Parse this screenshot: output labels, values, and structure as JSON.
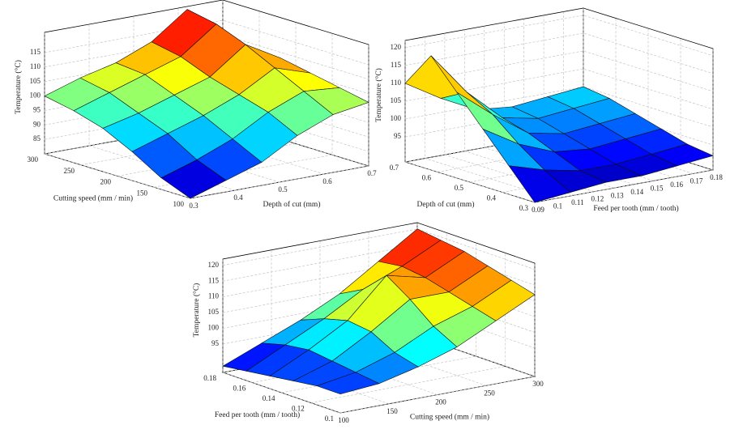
{
  "chart_data": [
    {
      "type": "surface",
      "xlabel": "Depth of cut (mm)",
      "ylabel": "Cutting speed (mm / min)",
      "zlabel": "Temperature (°C)",
      "x": [
        0.3,
        0.38,
        0.46,
        0.54,
        0.62,
        0.7
      ],
      "y": [
        100,
        140,
        180,
        220,
        260,
        300
      ],
      "z": [
        [
          80,
          84,
          88,
          95,
          100,
          102
        ],
        [
          84,
          88,
          93,
          100,
          105,
          104
        ],
        [
          90,
          94,
          98,
          103,
          110,
          106
        ],
        [
          95,
          98,
          102,
          106,
          115,
          108
        ],
        [
          98,
          102,
          106,
          110,
          119,
          107
        ],
        [
          100,
          104,
          107,
          112,
          121,
          106
        ]
      ],
      "xlim": [
        0.3,
        0.7
      ],
      "ylim": [
        100,
        300
      ],
      "zlim": [
        80,
        122
      ],
      "xticks": [
        0.3,
        0.4,
        0.5,
        0.6,
        0.7
      ],
      "yticks": [
        100,
        150,
        200,
        250,
        300
      ],
      "zticks": [
        85,
        90,
        95,
        100,
        105,
        110,
        115
      ],
      "grid": true,
      "colormap": "jet"
    },
    {
      "type": "surface",
      "xlabel": "Feed per tooth (mm / tooth)",
      "ylabel": "Depth of cut (mm)",
      "zlabel": "Temperature (°C)",
      "x": [
        0.09,
        0.108,
        0.126,
        0.144,
        0.162,
        0.18
      ],
      "y": [
        0.3,
        0.38,
        0.46,
        0.54,
        0.62,
        0.7
      ],
      "z": [
        [
          88,
          89,
          90,
          90,
          91,
          92
        ],
        [
          96,
          93,
          91,
          91,
          92,
          93
        ],
        [
          104,
          98,
          94,
          93,
          94,
          95
        ],
        [
          112,
          104,
          97,
          95,
          96,
          97
        ],
        [
          120,
          108,
          99,
          97,
          98,
          99
        ],
        [
          110,
          104,
          99,
          98,
          99,
          100
        ]
      ],
      "xlim": [
        0.09,
        0.18
      ],
      "ylim": [
        0.3,
        0.7
      ],
      "zlim": [
        88,
        122
      ],
      "xticks": [
        0.09,
        0.1,
        0.11,
        0.12,
        0.13,
        0.14,
        0.15,
        0.16,
        0.17,
        0.18
      ],
      "yticks": [
        0.3,
        0.4,
        0.5,
        0.6,
        0.7
      ],
      "zticks": [
        95,
        100,
        105,
        110,
        115,
        120
      ],
      "grid": true,
      "colormap": "jet"
    },
    {
      "type": "surface",
      "xlabel": "Cutting speed (mm / min)",
      "ylabel": "Feed per tooth (mm / tooth)",
      "zlabel": "Temperature (°C)",
      "x": [
        100,
        140,
        180,
        220,
        260,
        300
      ],
      "y": [
        0.1,
        0.116,
        0.132,
        0.148,
        0.164,
        0.18
      ],
      "z": [
        [
          92,
          93,
          96,
          100,
          106,
          112
        ],
        [
          92,
          94,
          98,
          104,
          108,
          114
        ],
        [
          91,
          95,
          102,
          110,
          110,
          116
        ],
        [
          90,
          96,
          103,
          115,
          112,
          118
        ],
        [
          89,
          95,
          101,
          108,
          113,
          119
        ],
        [
          88,
          93,
          98,
          104,
          112,
          120
        ]
      ],
      "xlim": [
        100,
        300
      ],
      "ylim": [
        0.1,
        0.18
      ],
      "zlim": [
        86,
        122
      ],
      "xticks": [
        100,
        150,
        200,
        250,
        300
      ],
      "yticks": [
        0.1,
        0.12,
        0.14,
        0.16,
        0.18
      ],
      "zticks": [
        95,
        100,
        105,
        110,
        115,
        120
      ],
      "grid": true,
      "colormap": "jet"
    }
  ]
}
